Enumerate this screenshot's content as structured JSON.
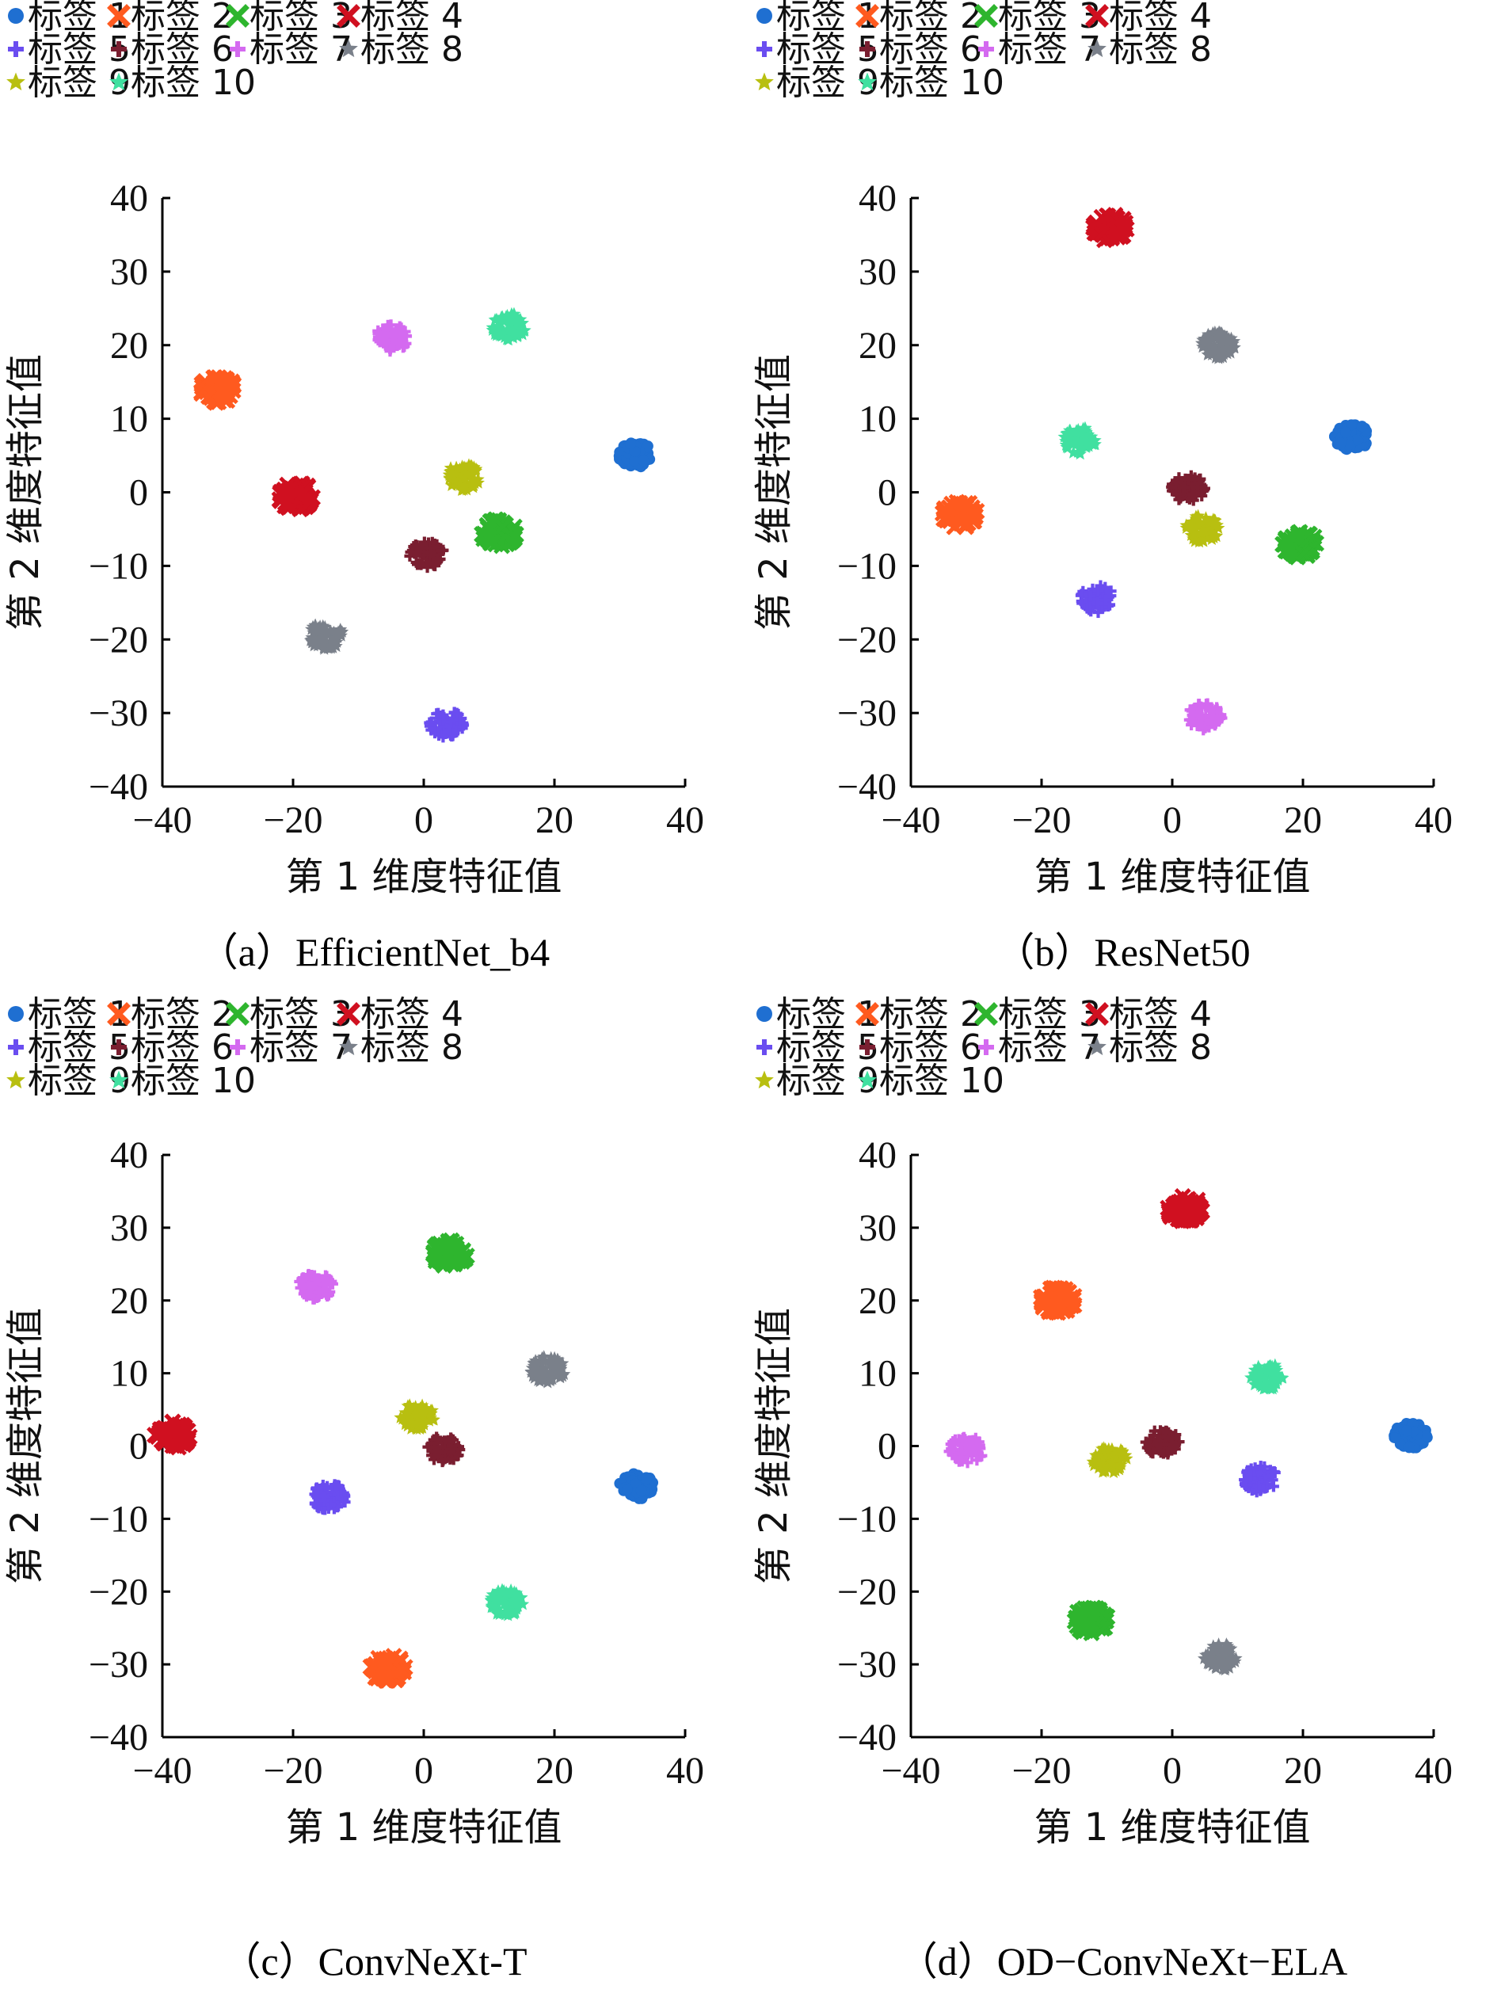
{
  "legend_labels": [
    "标签 1",
    "标签 2",
    "标签 3",
    "标签 4",
    "标签 5",
    "标签 6",
    "标签 7",
    "标签 8",
    "标签 9",
    "标签 10"
  ],
  "series_colors": [
    "#1f6fd1",
    "#ff5a1f",
    "#2eb52e",
    "#d01020",
    "#6a4df0",
    "#7a1e30",
    "#d46af0",
    "#7a808a",
    "#b8bf10",
    "#40e0a0"
  ],
  "series_markers": [
    "circle",
    "x",
    "x",
    "x",
    "plus",
    "plus",
    "plus",
    "star",
    "star",
    "star"
  ],
  "chart_data": [
    {
      "type": "scatter",
      "caption": "（a）EfficientNet_b4",
      "xlabel": "第 1 维度特征值",
      "ylabel": "第 2 维度特征值",
      "xlim": [
        -40,
        40
      ],
      "ylim": [
        -40,
        40
      ],
      "xticks": [
        "−40",
        "−20",
        "0",
        "20",
        "40"
      ],
      "yticks": [
        "40",
        "30",
        "20",
        "10",
        "0",
        "−10",
        "−20",
        "−30",
        "−40"
      ],
      "series": [
        {
          "name": "标签 1",
          "center": [
            32.5,
            5
          ]
        },
        {
          "name": "标签 2",
          "center": [
            -31.5,
            14
          ]
        },
        {
          "name": "标签 3",
          "center": [
            11.5,
            -5.5
          ]
        },
        {
          "name": "标签 4",
          "center": [
            -19.5,
            -0.5
          ]
        },
        {
          "name": "标签 5",
          "center": [
            3.5,
            -31.5
          ]
        },
        {
          "name": "标签 6",
          "center": [
            0.5,
            -8.5
          ]
        },
        {
          "name": "标签 7",
          "center": [
            -5,
            21
          ]
        },
        {
          "name": "标签 8",
          "center": [
            -15,
            -19.5
          ]
        },
        {
          "name": "标签 9",
          "center": [
            6,
            2
          ]
        },
        {
          "name": "标签 10",
          "center": [
            13,
            22.5
          ]
        }
      ]
    },
    {
      "type": "scatter",
      "caption": "（b）ResNet50",
      "xlabel": "第 1 维度特征值",
      "ylabel": "第 2 维度特征值",
      "xlim": [
        -40,
        40
      ],
      "ylim": [
        -40,
        40
      ],
      "xticks": [
        "−40",
        "−20",
        "0",
        "20",
        "40"
      ],
      "yticks": [
        "40",
        "30",
        "20",
        "10",
        "0",
        "−10",
        "−20",
        "−30",
        "−40"
      ],
      "series": [
        {
          "name": "标签 1",
          "center": [
            27.5,
            7.5
          ]
        },
        {
          "name": "标签 2",
          "center": [
            -32.5,
            -3
          ]
        },
        {
          "name": "标签 3",
          "center": [
            19.5,
            -7
          ]
        },
        {
          "name": "标签 4",
          "center": [
            -9.5,
            36
          ]
        },
        {
          "name": "标签 5",
          "center": [
            -11.5,
            -14.5
          ]
        },
        {
          "name": "标签 6",
          "center": [
            2.5,
            0.5
          ]
        },
        {
          "name": "标签 7",
          "center": [
            5,
            -30.5
          ]
        },
        {
          "name": "标签 8",
          "center": [
            7,
            20
          ]
        },
        {
          "name": "标签 9",
          "center": [
            4.5,
            -5
          ]
        },
        {
          "name": "标签 10",
          "center": [
            -14,
            7
          ]
        }
      ]
    },
    {
      "type": "scatter",
      "caption": "（c）ConvNeXt-T",
      "xlabel": "第 1 维度特征值",
      "ylabel": "第 2 维度特征值",
      "xlim": [
        -40,
        40
      ],
      "ylim": [
        -40,
        40
      ],
      "xticks": [
        "−40",
        "−20",
        "0",
        "20",
        "40"
      ],
      "yticks": [
        "40",
        "30",
        "20",
        "10",
        "0",
        "−10",
        "−20",
        "−30",
        "−40"
      ],
      "series": [
        {
          "name": "标签 1",
          "center": [
            32.5,
            -5.5
          ]
        },
        {
          "name": "标签 2",
          "center": [
            -5.5,
            -30.5
          ]
        },
        {
          "name": "标签 3",
          "center": [
            4,
            26.5
          ]
        },
        {
          "name": "标签 4",
          "center": [
            -38.5,
            1.5
          ]
        },
        {
          "name": "标签 5",
          "center": [
            -14.5,
            -7
          ]
        },
        {
          "name": "标签 6",
          "center": [
            3,
            -0.5
          ]
        },
        {
          "name": "标签 7",
          "center": [
            -16.5,
            22
          ]
        },
        {
          "name": "标签 8",
          "center": [
            19,
            10.5
          ]
        },
        {
          "name": "标签 9",
          "center": [
            -1,
            4
          ]
        },
        {
          "name": "标签 10",
          "center": [
            12.5,
            -21.5
          ]
        }
      ]
    },
    {
      "type": "scatter",
      "caption": "（d）OD−ConvNeXt−ELA",
      "xlabel": "第 1 维度特征值",
      "ylabel": "第 2 维度特征值",
      "xlim": [
        -40,
        40
      ],
      "ylim": [
        -40,
        40
      ],
      "xticks": [
        "−40",
        "−20",
        "0",
        "20",
        "40"
      ],
      "yticks": [
        "40",
        "30",
        "20",
        "10",
        "0",
        "−10",
        "−20",
        "−30",
        "−40"
      ],
      "series": [
        {
          "name": "标签 1",
          "center": [
            36.5,
            1.5
          ]
        },
        {
          "name": "标签 2",
          "center": [
            -17.5,
            20
          ]
        },
        {
          "name": "标签 3",
          "center": [
            -12.5,
            -24
          ]
        },
        {
          "name": "标签 4",
          "center": [
            2,
            32.5
          ]
        },
        {
          "name": "标签 5",
          "center": [
            13.5,
            -4.5
          ]
        },
        {
          "name": "标签 6",
          "center": [
            -1.5,
            0.5
          ]
        },
        {
          "name": "标签 7",
          "center": [
            -31.5,
            -0.5
          ]
        },
        {
          "name": "标签 8",
          "center": [
            7.5,
            -29
          ]
        },
        {
          "name": "标签 9",
          "center": [
            -9.5,
            -2
          ]
        },
        {
          "name": "标签 10",
          "center": [
            14.5,
            9.5
          ]
        }
      ]
    }
  ]
}
